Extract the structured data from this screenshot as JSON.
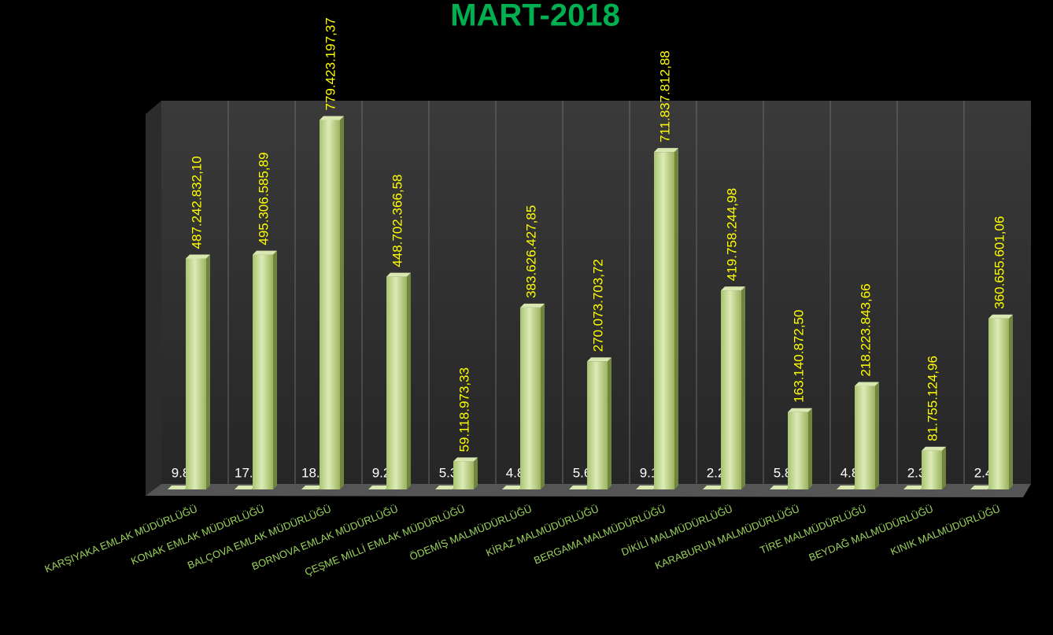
{
  "chart_data": {
    "type": "bar3d",
    "title": "MART-2018",
    "categories": [
      "KARŞIYAKA EMLAK MÜDÜRLÜĞÜ",
      "KONAK EMLAK MÜDÜRLÜĞÜ",
      "BALÇOVA EMLAK MÜDÜRLÜĞÜ",
      "BORNOVA EMLAK MÜDÜRLÜĞÜ",
      "ÇEŞME MİLLİ EMLAK MÜDÜRLÜĞÜ",
      "ÖDEMİŞ MALMÜDÜRLÜĞÜ",
      "KİRAZ MALMÜDÜRLÜĞÜ",
      "BERGAMA MALMÜDÜRLÜĞÜ",
      "DİKİLİ MALMÜDÜRLÜĞÜ",
      "KARABURUN MALMÜDÜRLÜĞÜ",
      "TİRE MALMÜDÜRLÜĞÜ",
      "BEYDAĞ MALMÜDÜRLÜĞÜ",
      "KINIK MALMÜDÜRLÜĞÜ"
    ],
    "series": [
      {
        "color": "#9bbb59",
        "label_color": "#ffffff",
        "values": [
          9897,
          17271,
          18626,
          9239,
          5393,
          4896,
          5665,
          9125,
          2241,
          5820,
          4852,
          2322,
          2474
        ],
        "value_labels": [
          "9.897",
          "17.271",
          "18.626",
          "9.239",
          "5.393",
          "4.896",
          "5.665",
          "9.125",
          "2.241",
          "5.820",
          "4.852",
          "2.322",
          "2.474"
        ]
      },
      {
        "color": "#c3d69b",
        "label_color": "#ffff00",
        "values": [
          487242832.1,
          495306585.89,
          779423197.37,
          448702366.58,
          59118973.33,
          383626427.85,
          270073703.72,
          711837812.88,
          419758244.98,
          163140872.5,
          218223843.66,
          81755124.96,
          360655601.06
        ],
        "value_labels": [
          "487.242.832,10",
          "495.306.585,89",
          "779.423.197,37",
          "448.702.366,58",
          "59.118.973,33",
          "383.626.427,85",
          "270.073.703,72",
          "711.837.812,88",
          "419.758.244,98",
          "163.140.872,50",
          "218.223.843,66",
          "81.755.124,96",
          "360.655.601,06"
        ]
      }
    ],
    "ylim": [
      0,
      820000000
    ]
  }
}
